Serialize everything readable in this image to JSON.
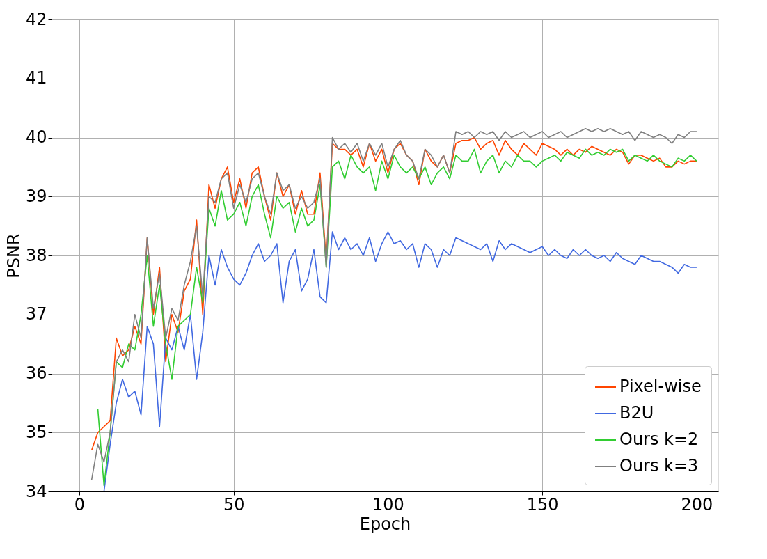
{
  "chart_data": {
    "type": "line",
    "xlabel": "Epoch",
    "ylabel": "PSNR",
    "x": [
      4,
      6,
      8,
      10,
      12,
      14,
      16,
      18,
      20,
      22,
      24,
      26,
      28,
      30,
      32,
      34,
      36,
      38,
      40,
      42,
      44,
      46,
      48,
      50,
      52,
      54,
      56,
      58,
      60,
      62,
      64,
      66,
      68,
      70,
      72,
      74,
      76,
      78,
      80,
      82,
      84,
      86,
      88,
      90,
      92,
      94,
      96,
      98,
      100,
      102,
      104,
      106,
      108,
      110,
      112,
      114,
      116,
      118,
      120,
      122,
      124,
      126,
      128,
      130,
      132,
      134,
      136,
      138,
      140,
      142,
      144,
      146,
      148,
      150,
      152,
      154,
      156,
      158,
      160,
      162,
      164,
      166,
      168,
      170,
      172,
      174,
      176,
      178,
      180,
      182,
      184,
      186,
      188,
      190,
      192,
      194,
      196,
      198,
      200
    ],
    "series": [
      {
        "name": "Pixel-wise",
        "color": "#ff4500",
        "values": [
          34.7,
          35.0,
          35.1,
          35.2,
          36.6,
          36.3,
          36.4,
          36.8,
          36.5,
          38.3,
          37.0,
          37.8,
          36.2,
          37.0,
          36.7,
          37.4,
          37.6,
          38.6,
          37.0,
          39.2,
          38.8,
          39.3,
          39.5,
          38.9,
          39.3,
          38.8,
          39.4,
          39.5,
          39.0,
          38.6,
          39.4,
          39.0,
          39.2,
          38.7,
          39.1,
          38.7,
          38.7,
          39.4,
          37.9,
          39.9,
          39.8,
          39.8,
          39.7,
          39.8,
          39.5,
          39.9,
          39.6,
          39.8,
          39.4,
          39.8,
          39.9,
          39.7,
          39.6,
          39.2,
          39.8,
          39.6,
          39.5,
          39.7,
          39.4,
          39.9,
          39.95,
          39.95,
          40.0,
          39.8,
          39.9,
          39.95,
          39.7,
          39.95,
          39.8,
          39.7,
          39.9,
          39.8,
          39.7,
          39.9,
          39.85,
          39.8,
          39.7,
          39.8,
          39.7,
          39.8,
          39.75,
          39.85,
          39.8,
          39.75,
          39.7,
          39.8,
          39.75,
          39.55,
          39.7,
          39.7,
          39.65,
          39.6,
          39.65,
          39.5,
          39.5,
          39.6,
          39.55,
          39.6,
          39.6
        ]
      },
      {
        "name": "B2U",
        "color": "#4169e1",
        "values": [
          null,
          null,
          34.0,
          34.8,
          35.5,
          35.9,
          35.6,
          35.7,
          35.3,
          36.8,
          36.5,
          35.1,
          36.6,
          36.4,
          36.8,
          36.4,
          37.0,
          35.9,
          36.7,
          38.0,
          37.5,
          38.1,
          37.8,
          37.6,
          37.5,
          37.7,
          38.0,
          38.2,
          37.9,
          38.0,
          38.2,
          37.2,
          37.9,
          38.1,
          37.4,
          37.6,
          38.1,
          37.3,
          37.2,
          38.4,
          38.1,
          38.3,
          38.1,
          38.2,
          38.0,
          38.3,
          37.9,
          38.2,
          38.4,
          38.2,
          38.25,
          38.1,
          38.2,
          37.8,
          38.2,
          38.1,
          37.8,
          38.1,
          38.0,
          38.3,
          38.25,
          38.2,
          38.15,
          38.1,
          38.2,
          37.9,
          38.25,
          38.1,
          38.2,
          38.15,
          38.1,
          38.05,
          38.1,
          38.15,
          38.0,
          38.1,
          38.0,
          37.95,
          38.1,
          38.0,
          38.1,
          38.0,
          37.95,
          38.0,
          37.9,
          38.05,
          37.95,
          37.9,
          37.85,
          38.0,
          37.95,
          37.9,
          37.9,
          37.85,
          37.8,
          37.7,
          37.85,
          37.8,
          37.8
        ]
      },
      {
        "name": "Ours k=2",
        "color": "#32cd32",
        "values": [
          null,
          35.4,
          34.1,
          35.0,
          36.2,
          36.1,
          36.5,
          36.4,
          37.0,
          38.0,
          36.8,
          37.5,
          36.5,
          35.9,
          36.8,
          36.9,
          37.0,
          37.8,
          37.2,
          38.8,
          38.5,
          39.1,
          38.6,
          38.7,
          38.9,
          38.5,
          39.0,
          39.2,
          38.7,
          38.3,
          39.0,
          38.8,
          38.9,
          38.4,
          38.8,
          38.5,
          38.6,
          39.2,
          37.8,
          39.5,
          39.6,
          39.3,
          39.7,
          39.5,
          39.4,
          39.5,
          39.1,
          39.6,
          39.3,
          39.7,
          39.5,
          39.4,
          39.5,
          39.3,
          39.5,
          39.2,
          39.4,
          39.5,
          39.3,
          39.7,
          39.6,
          39.6,
          39.8,
          39.4,
          39.6,
          39.7,
          39.4,
          39.6,
          39.5,
          39.7,
          39.6,
          39.6,
          39.5,
          39.6,
          39.65,
          39.7,
          39.6,
          39.75,
          39.7,
          39.65,
          39.8,
          39.7,
          39.75,
          39.7,
          39.8,
          39.75,
          39.8,
          39.6,
          39.7,
          39.65,
          39.6,
          39.7,
          39.6,
          39.55,
          39.5,
          39.65,
          39.6,
          39.7,
          39.6
        ]
      },
      {
        "name": "Ours k=3",
        "color": "#808080",
        "values": [
          34.2,
          34.8,
          34.5,
          35.0,
          36.2,
          36.4,
          36.2,
          37.0,
          36.6,
          38.3,
          37.1,
          37.7,
          36.6,
          37.1,
          36.9,
          37.5,
          37.9,
          38.5,
          37.3,
          39.0,
          38.9,
          39.3,
          39.4,
          38.8,
          39.2,
          38.9,
          39.3,
          39.4,
          39.0,
          38.7,
          39.4,
          39.1,
          39.2,
          38.8,
          39.0,
          38.8,
          38.9,
          39.3,
          37.8,
          40.0,
          39.8,
          39.9,
          39.75,
          39.9,
          39.6,
          39.9,
          39.7,
          39.9,
          39.5,
          39.8,
          39.95,
          39.7,
          39.6,
          39.3,
          39.8,
          39.7,
          39.5,
          39.7,
          39.4,
          40.1,
          40.05,
          40.1,
          40.0,
          40.1,
          40.05,
          40.1,
          39.95,
          40.1,
          40.0,
          40.05,
          40.1,
          40.0,
          40.05,
          40.1,
          40.0,
          40.05,
          40.1,
          40.0,
          40.05,
          40.1,
          40.15,
          40.1,
          40.15,
          40.1,
          40.15,
          40.1,
          40.05,
          40.1,
          39.95,
          40.1,
          40.05,
          40.0,
          40.05,
          40.0,
          39.9,
          40.05,
          40.0,
          40.1,
          40.1
        ]
      }
    ],
    "xlim": [
      -9,
      207
    ],
    "xticks": [
      0,
      50,
      100,
      150,
      200
    ],
    "ylim": [
      34,
      42
    ],
    "yticks": [
      34,
      35,
      36,
      37,
      38,
      39,
      40,
      41,
      42
    ],
    "grid": true,
    "legend": "bottom right",
    "line_style": "solid",
    "marker": "none"
  }
}
